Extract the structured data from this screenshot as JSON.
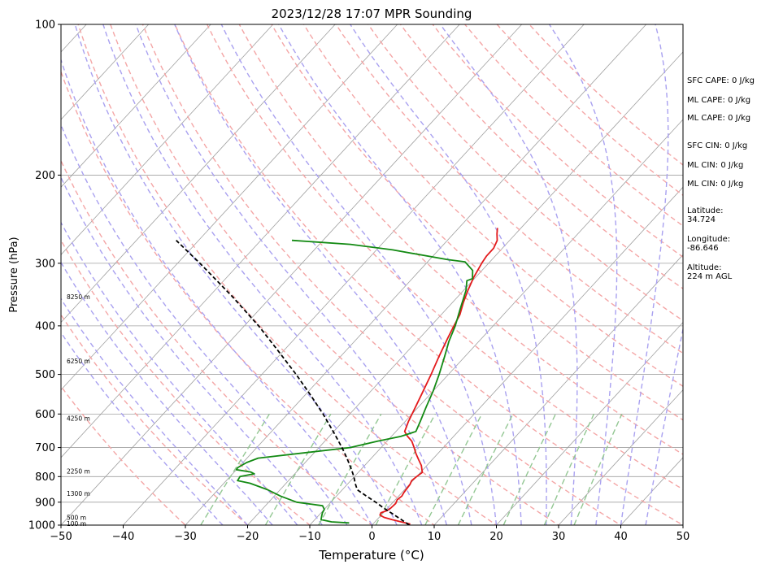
{
  "chart_data": {
    "type": "line",
    "diagram": "skew-t log-p",
    "title": "2023/12/28 17:07 MPR Sounding",
    "xlabel": "Temperature (°C)",
    "ylabel": "Pressure (hPa)",
    "xlim": [
      -50,
      50
    ],
    "ylim": [
      1000,
      100
    ],
    "y_scale": "log",
    "grid": true,
    "x_ticks": [
      -50,
      -40,
      -30,
      -20,
      -10,
      0,
      10,
      20,
      30,
      40,
      50
    ],
    "x_tick_labels": [
      "−50",
      "−40",
      "−30",
      "−20",
      "−10",
      "0",
      "10",
      "20",
      "30",
      "40",
      "50"
    ],
    "y_ticks": [
      1000,
      900,
      800,
      700,
      600,
      500,
      400,
      300,
      200,
      100
    ],
    "y_tick_labels": [
      "1000",
      "900",
      "800",
      "700",
      "600",
      "500",
      "400",
      "300",
      "200",
      "100"
    ],
    "colors": {
      "temperature": "#e31a1c",
      "dewpoint": "#138a13",
      "parcel": "#000000",
      "dry_adiabat": "#f4a6a6",
      "moist_adiabat": "#a9a1f0",
      "mixing_ratio": "#93c793",
      "isotherm": "#a0a0a0"
    },
    "series": [
      {
        "key": "temperature",
        "pressure": [
          995,
          985,
          975,
          965,
          955,
          945,
          935,
          925,
          905,
          890,
          875,
          860,
          845,
          830,
          815,
          800,
          785,
          760,
          740,
          720,
          700,
          680,
          665,
          650,
          620,
          580,
          540,
          500,
          460,
          420,
          400,
          380,
          360,
          340,
          320,
          300,
          290,
          280,
          270,
          262,
          255
        ],
        "temperature": [
          6.0,
          4.2,
          2.4,
          0.8,
          -0.2,
          -0.4,
          0.3,
          0.5,
          0.6,
          0.3,
          0.5,
          0.3,
          0.2,
          0.1,
          -0.2,
          0.0,
          0.3,
          -0.9,
          -2.2,
          -3.5,
          -4.7,
          -6.0,
          -7.4,
          -8.6,
          -9.5,
          -10.5,
          -11.6,
          -12.8,
          -14.2,
          -15.6,
          -16.3,
          -17.0,
          -18.2,
          -19.3,
          -20.3,
          -21.1,
          -21.4,
          -21.4,
          -22.0,
          -23.0,
          -23.8
        ]
      },
      {
        "key": "dewpoint",
        "pressure": [
          990,
          985,
          975,
          960,
          945,
          930,
          915,
          900,
          875,
          850,
          825,
          815,
          800,
          790,
          783,
          775,
          768,
          750,
          735,
          700,
          680,
          665,
          650,
          620,
          580,
          540,
          500,
          460,
          430,
          400,
          370,
          340,
          325,
          322,
          310,
          298,
          295,
          282,
          275,
          270
        ],
        "dewpoint": [
          -4.0,
          -7.0,
          -9.0,
          -9.4,
          -9.8,
          -10.0,
          -10.8,
          -15.5,
          -19.0,
          -22.0,
          -25.8,
          -28.2,
          -28.4,
          -26.5,
          -27.4,
          -30.0,
          -30.1,
          -29.4,
          -28.2,
          -15.0,
          -11.5,
          -8.5,
          -6.8,
          -7.6,
          -8.8,
          -10.0,
          -11.5,
          -13.3,
          -14.8,
          -16.1,
          -17.8,
          -19.6,
          -20.9,
          -20.3,
          -21.5,
          -24.0,
          -27.1,
          -37.4,
          -45.0,
          -55.0
        ]
      },
      {
        "key": "parcel",
        "pressure": [
          1000,
          975,
          950,
          925,
          900,
          875,
          850,
          825,
          800,
          775,
          750,
          725,
          700,
          650,
          600,
          550,
          500,
          450,
          400,
          350,
          300,
          270
        ],
        "temperature": [
          6.0,
          3.9,
          1.7,
          -0.6,
          -2.8,
          -5.2,
          -7.6,
          -8.9,
          -10.1,
          -11.5,
          -13.0,
          -14.6,
          -16.3,
          -20.1,
          -24.3,
          -29.1,
          -34.5,
          -40.7,
          -47.7,
          -56.2,
          -66.4,
          -73.6
        ]
      }
    ],
    "altitude_labels": [
      {
        "pressure": 992,
        "label": "100 m"
      },
      {
        "pressure": 965,
        "label": "500 m"
      },
      {
        "pressure": 865,
        "label": "1300 m"
      },
      {
        "pressure": 780,
        "label": "2250 m"
      },
      {
        "pressure": 612,
        "label": "4250 m"
      },
      {
        "pressure": 470,
        "label": "6250 m"
      },
      {
        "pressure": 350,
        "label": "8250 m"
      }
    ],
    "annotations": [
      "SFC CAPE: 0 J/kg",
      "ML CAPE: 0 J/kg",
      "ML CAPE: 0 J/kg",
      "SFC CIN: 0 J/kg",
      "ML CIN: 0 J/kg",
      "ML CIN: 0 J/kg",
      "Latitude:",
      "34.724",
      "Longitude:",
      "-86.646",
      "Altitude:",
      "224 m AGL"
    ],
    "background": {
      "dry_adiabats_theta_c": [
        -30,
        -20,
        -10,
        0,
        10,
        20,
        30,
        40,
        50,
        60,
        70,
        80,
        90,
        100,
        110,
        120,
        130,
        140,
        150,
        160
      ],
      "moist_adiabats_start_c": [
        -24,
        -20,
        -16,
        -12,
        -8,
        -4,
        0,
        4,
        8,
        12,
        16,
        20,
        24,
        28,
        32,
        36,
        40,
        44
      ],
      "mixing_ratios_gkg": [
        0.4,
        1,
        2,
        4,
        7,
        10,
        16,
        24,
        32
      ],
      "isotherms_c": [
        -140,
        -130,
        -120,
        -110,
        -100,
        -90,
        -80,
        -70,
        -60,
        -50,
        -40,
        -30,
        -20,
        -10,
        0,
        10,
        20,
        30,
        40,
        50
      ]
    }
  }
}
